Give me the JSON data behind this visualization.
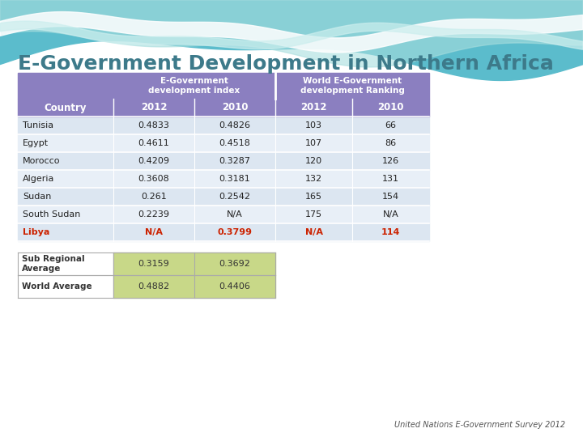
{
  "title": "E-Government Development in Northern Africa",
  "title_color": "#3d7a8a",
  "background_color": "#ffffff",
  "header1_text": "E-Government\ndevelopment index",
  "header2_text": "World E-Government\ndevelopment Ranking",
  "header_bg": "#8b7fc0",
  "header_fg": "#ffffff",
  "col_header": "Country",
  "col_years": [
    "2012",
    "2010",
    "2012",
    "2010"
  ],
  "countries": [
    "Tunisia",
    "Egypt",
    "Morocco",
    "Algeria",
    "Sudan",
    "South Sudan",
    "Libya"
  ],
  "libya_color": "#cc2200",
  "row_data": [
    [
      "0.4833",
      "0.4826",
      "103",
      "66"
    ],
    [
      "0.4611",
      "0.4518",
      "107",
      "86"
    ],
    [
      "0.4209",
      "0.3287",
      "120",
      "126"
    ],
    [
      "0.3608",
      "0.3181",
      "132",
      "131"
    ],
    [
      "0.261",
      "0.2542",
      "165",
      "154"
    ],
    [
      "0.2239",
      "N/A",
      "175",
      "N/A"
    ],
    [
      "N/A",
      "0.3799",
      "N/A",
      "114"
    ]
  ],
  "row_colors": [
    "#dce6f1",
    "#e8eff7",
    "#dce6f1",
    "#e8eff7",
    "#dce6f1",
    "#e8eff7",
    "#dce6f1"
  ],
  "sub_table_label1": "Sub Regional\nAverage",
  "sub_table_label2": "World Average",
  "sub_table_data": [
    [
      "0.3159",
      "0.3692"
    ],
    [
      "0.4882",
      "0.4406"
    ]
  ],
  "sub_table_bg": "#c8d888",
  "footnote": "United Nations E-Government Survey 2012",
  "footnote_color": "#555555",
  "wave_teal": "#5bbccc",
  "wave_light": "#a8dede",
  "wave_white": "#e8f8f8"
}
